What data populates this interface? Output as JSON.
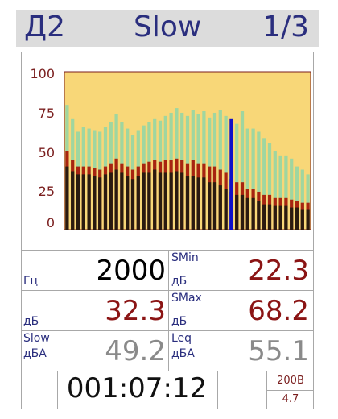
{
  "header": {
    "mode": "Д2",
    "filter": "Slow",
    "page": "1/3"
  },
  "colors": {
    "background_fill": "#f8d778",
    "total_level": "#9fd6a0",
    "mid_level": "#a82410",
    "low_level": "#2a1a10",
    "cursor": "#1010c8"
  },
  "chart_data": {
    "type": "bar",
    "ylim": [
      0,
      100
    ],
    "yticks": [
      "100",
      "75",
      "50",
      "25",
      "0"
    ],
    "cursor_index": 30,
    "series": [
      {
        "values": [
          79,
          70,
          62,
          65,
          64,
          63,
          62,
          65,
          68,
          73,
          68,
          64,
          60,
          63,
          66,
          68,
          70,
          69,
          72,
          74,
          77,
          74,
          72,
          76,
          73,
          75,
          71,
          74,
          76,
          72,
          70,
          67,
          75,
          64,
          64,
          62,
          58,
          55,
          50,
          47,
          47,
          45,
          40,
          38,
          35
        ]
      },
      {
        "values": [
          50,
          44,
          40,
          40,
          40,
          39,
          38,
          40,
          42,
          45,
          42,
          40,
          38,
          40,
          42,
          43,
          44,
          43,
          44,
          44,
          45,
          44,
          42,
          44,
          42,
          42,
          40,
          40,
          38,
          36,
          32,
          30,
          30,
          26,
          26,
          24,
          22,
          22,
          20,
          20,
          20,
          19,
          18,
          17,
          17
        ]
      },
      {
        "values": [
          40,
          37,
          35,
          35,
          35,
          34,
          33,
          35,
          36,
          38,
          36,
          34,
          32,
          34,
          36,
          36,
          38,
          36,
          36,
          36,
          37,
          36,
          34,
          34,
          33,
          33,
          30,
          30,
          28,
          26,
          24,
          22,
          22,
          20,
          20,
          18,
          16,
          16,
          15,
          15,
          15,
          14,
          14,
          13,
          13
        ]
      }
    ]
  },
  "readouts": {
    "freq_unit": "Гц",
    "freq_value": "2000",
    "smin_label": "SMin",
    "smin_unit": "дБ",
    "smin_value": "22.3",
    "level_unit": "дБ",
    "level_value": "32.3",
    "smax_label": "SMax",
    "smax_unit": "дБ",
    "smax_value": "68.2",
    "slow_label": "Slow",
    "slow_unit": "дБА",
    "slow_value": "49.2",
    "leq_label": "Leq",
    "leq_unit": "дБА",
    "leq_value": "55.1",
    "timer": "001:07:12",
    "battery_voltage": "200В",
    "aux_value": "4.7"
  }
}
